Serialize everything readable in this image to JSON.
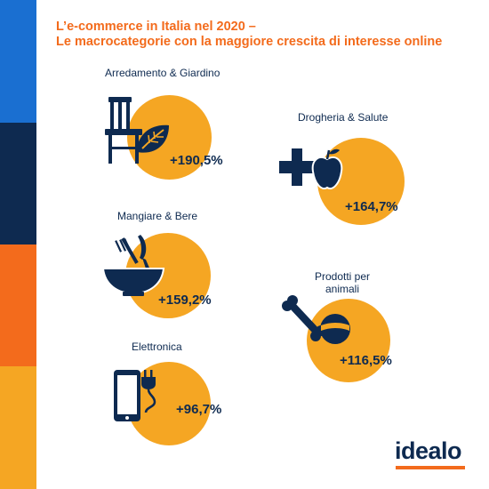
{
  "header": {
    "title_line1": "L’e-commerce in Italia nel 2020 –",
    "title_line2": "Le macrocategorie con la maggiore crescita di interesse online"
  },
  "colors": {
    "accent_orange": "#f36b1c",
    "circle_orange": "#f5a623",
    "navy": "#0e2a50",
    "stripe_blue": "#1a6fd1",
    "stripe_navy": "#0e2a50",
    "stripe_orange": "#f36b1c",
    "stripe_yellow": "#f5a623"
  },
  "brand": {
    "logo": "idealo"
  },
  "chart_data": {
    "type": "other",
    "title": "L’e-commerce in Italia nel 2020 – Le macrocategorie con la maggiore crescita di interesse online",
    "categories": [
      "Arredamento & Giardino",
      "Drogheria & Salute",
      "Mangiare & Bere",
      "Prodotti per animali",
      "Elettronica"
    ],
    "values": [
      190.5,
      164.7,
      159.2,
      116.5,
      96.7
    ],
    "unit": "%",
    "items": [
      {
        "label": "Arredamento & Giardino",
        "value": 190.5,
        "value_label": "+190,5%",
        "icon": "chair-leaf-icon"
      },
      {
        "label": "Drogheria & Salute",
        "value": 164.7,
        "value_label": "+164,7%",
        "icon": "cross-apple-icon"
      },
      {
        "label": "Mangiare & Bere",
        "value": 159.2,
        "value_label": "+159,2%",
        "icon": "bowl-cutlery-icon"
      },
      {
        "label": "Prodotti per animali",
        "value": 116.5,
        "value_label": "+116,5%",
        "icon": "bone-ball-icon"
      },
      {
        "label": "Elettronica",
        "value": 96.7,
        "value_label": "+96,7%",
        "icon": "phone-plug-icon"
      }
    ]
  }
}
